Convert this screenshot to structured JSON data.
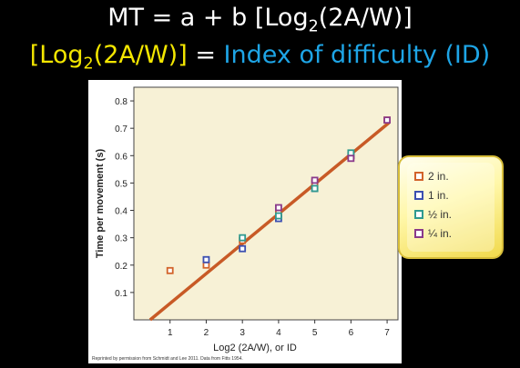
{
  "header": {
    "line1_prefix": "MT = a + b [Log",
    "line1_sub": "2",
    "line1_suffix": "(2A/W)]",
    "line2_prefix": "[Log",
    "line2_sub": "2",
    "line2_mid": "(2A/W)]",
    "line2_eq": " = ",
    "line2_id": "Index of difficulty (ID)"
  },
  "footnote": "Reprinted by permission from Schmidt and Lee 2011. Data from Fitts 1954.",
  "legend": {
    "items": [
      {
        "label": "2 in.",
        "color": "#d2632a"
      },
      {
        "label": "1 in.",
        "color": "#3b4fb0"
      },
      {
        "label": "½ in.",
        "color": "#2f9a8f"
      },
      {
        "label": "¼ in.",
        "color": "#8a3a8a"
      }
    ]
  },
  "chart_data": {
    "type": "scatter",
    "xlabel": "Log2 (2A/W), or ID",
    "ylabel": "Time per movement (s)",
    "xlim": [
      0,
      7.3
    ],
    "ylim": [
      0,
      0.85
    ],
    "x_ticks": [
      1,
      2,
      3,
      4,
      5,
      6,
      7
    ],
    "y_ticks": [
      0.1,
      0.2,
      0.3,
      0.4,
      0.5,
      0.6,
      0.7,
      0.8
    ],
    "background": "#f7f1d6",
    "series": [
      {
        "name": "2 in.",
        "color": "#d2632a",
        "points": [
          [
            1,
            0.18
          ],
          [
            2,
            0.2
          ],
          [
            3,
            0.29
          ],
          [
            4,
            0.39
          ],
          [
            5,
            0.5
          ],
          [
            6,
            0.6
          ],
          [
            7,
            0.73
          ]
        ]
      },
      {
        "name": "1 in.",
        "color": "#3b4fb0",
        "points": [
          [
            2,
            0.22
          ],
          [
            3,
            0.26
          ],
          [
            4,
            0.37
          ],
          [
            5,
            0.48
          ],
          [
            6,
            0.6
          ]
        ]
      },
      {
        "name": "½ in.",
        "color": "#2f9a8f",
        "points": [
          [
            3,
            0.3
          ],
          [
            4,
            0.38
          ],
          [
            5,
            0.48
          ],
          [
            6,
            0.61
          ]
        ]
      },
      {
        "name": "¼ in.",
        "color": "#8a3a8a",
        "points": [
          [
            4,
            0.41
          ],
          [
            5,
            0.51
          ],
          [
            6,
            0.59
          ],
          [
            7,
            0.73
          ]
        ]
      }
    ],
    "fit_line": {
      "color": "#c85a26",
      "from": [
        0.45,
        0
      ],
      "to": [
        7.05,
        0.72
      ]
    }
  }
}
